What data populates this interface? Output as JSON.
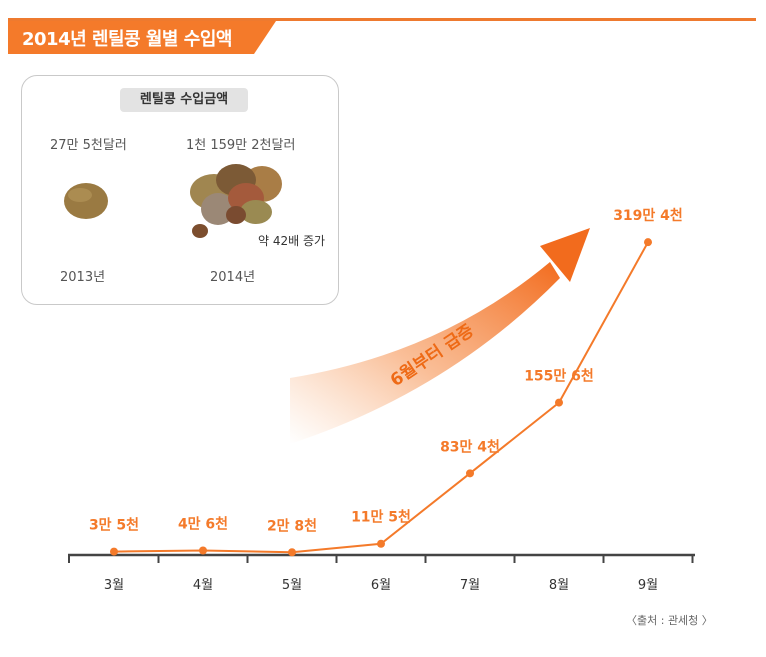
{
  "title": "2014년 렌틸콩 월별 수입액",
  "inset": {
    "label": "렌틸콩 수입금액",
    "left_value": "27만 5천달러",
    "right_value": "1천 159만 2천달러",
    "left_year": "2013년",
    "right_year": "2014년",
    "increase": "약 42배 증가"
  },
  "arrow_label": "6월부터 급증",
  "source": "〈출처 : 관세청 〉",
  "colors": {
    "accent": "#f47a2a",
    "axis": "#444444",
    "bean": "#9a7a42"
  },
  "chart_data": {
    "type": "line",
    "categories": [
      "3월",
      "4월",
      "5월",
      "6월",
      "7월",
      "8월",
      "9월"
    ],
    "values": [
      35000,
      46000,
      28000,
      115000,
      834000,
      1556000,
      3194000
    ],
    "data_labels": [
      "3만 5천",
      "4만 6천",
      "2만 8천",
      "11만 5천",
      "83만 4천",
      "155만 6천",
      "319만 4천"
    ],
    "ylim": [
      0,
      3400000
    ],
    "grid": false,
    "legend": "none"
  }
}
